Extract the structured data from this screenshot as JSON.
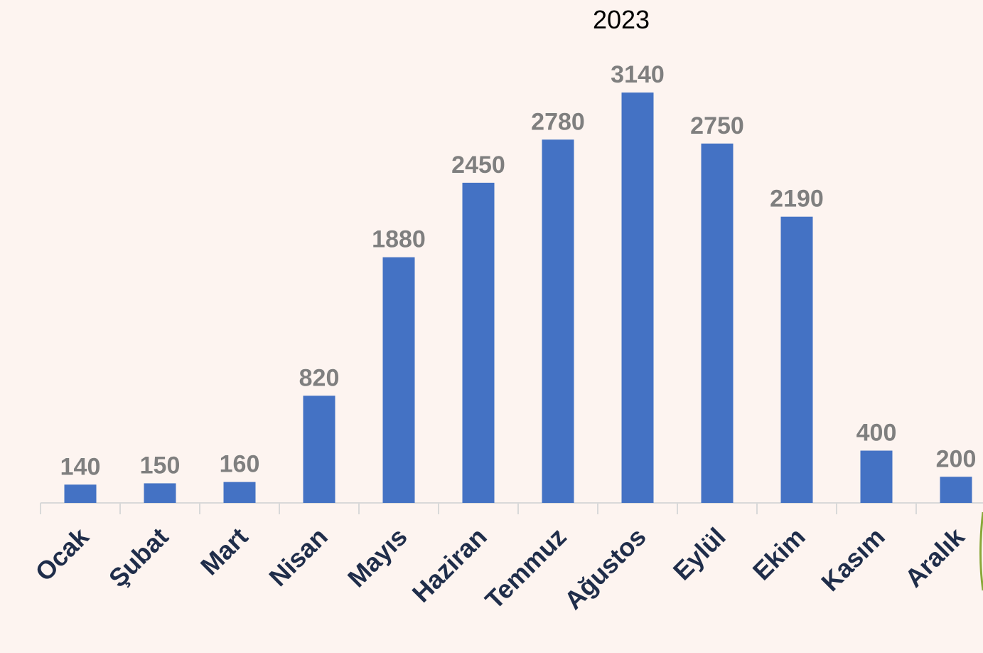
{
  "chart_data": {
    "type": "bar",
    "title": "2023",
    "categories": [
      "Ocak",
      "Şubat",
      "Mart",
      "Nisan",
      "Mayıs",
      "Haziran",
      "Temmuz",
      "Ağustos",
      "Eylül",
      "Ekim",
      "Kasım",
      "Aralık"
    ],
    "values": [
      140,
      150,
      160,
      820,
      1880,
      2450,
      2780,
      3140,
      2750,
      2190,
      400,
      200
    ],
    "color": "#4472c4",
    "ylim": [
      0,
      3500
    ],
    "grid": false
  }
}
